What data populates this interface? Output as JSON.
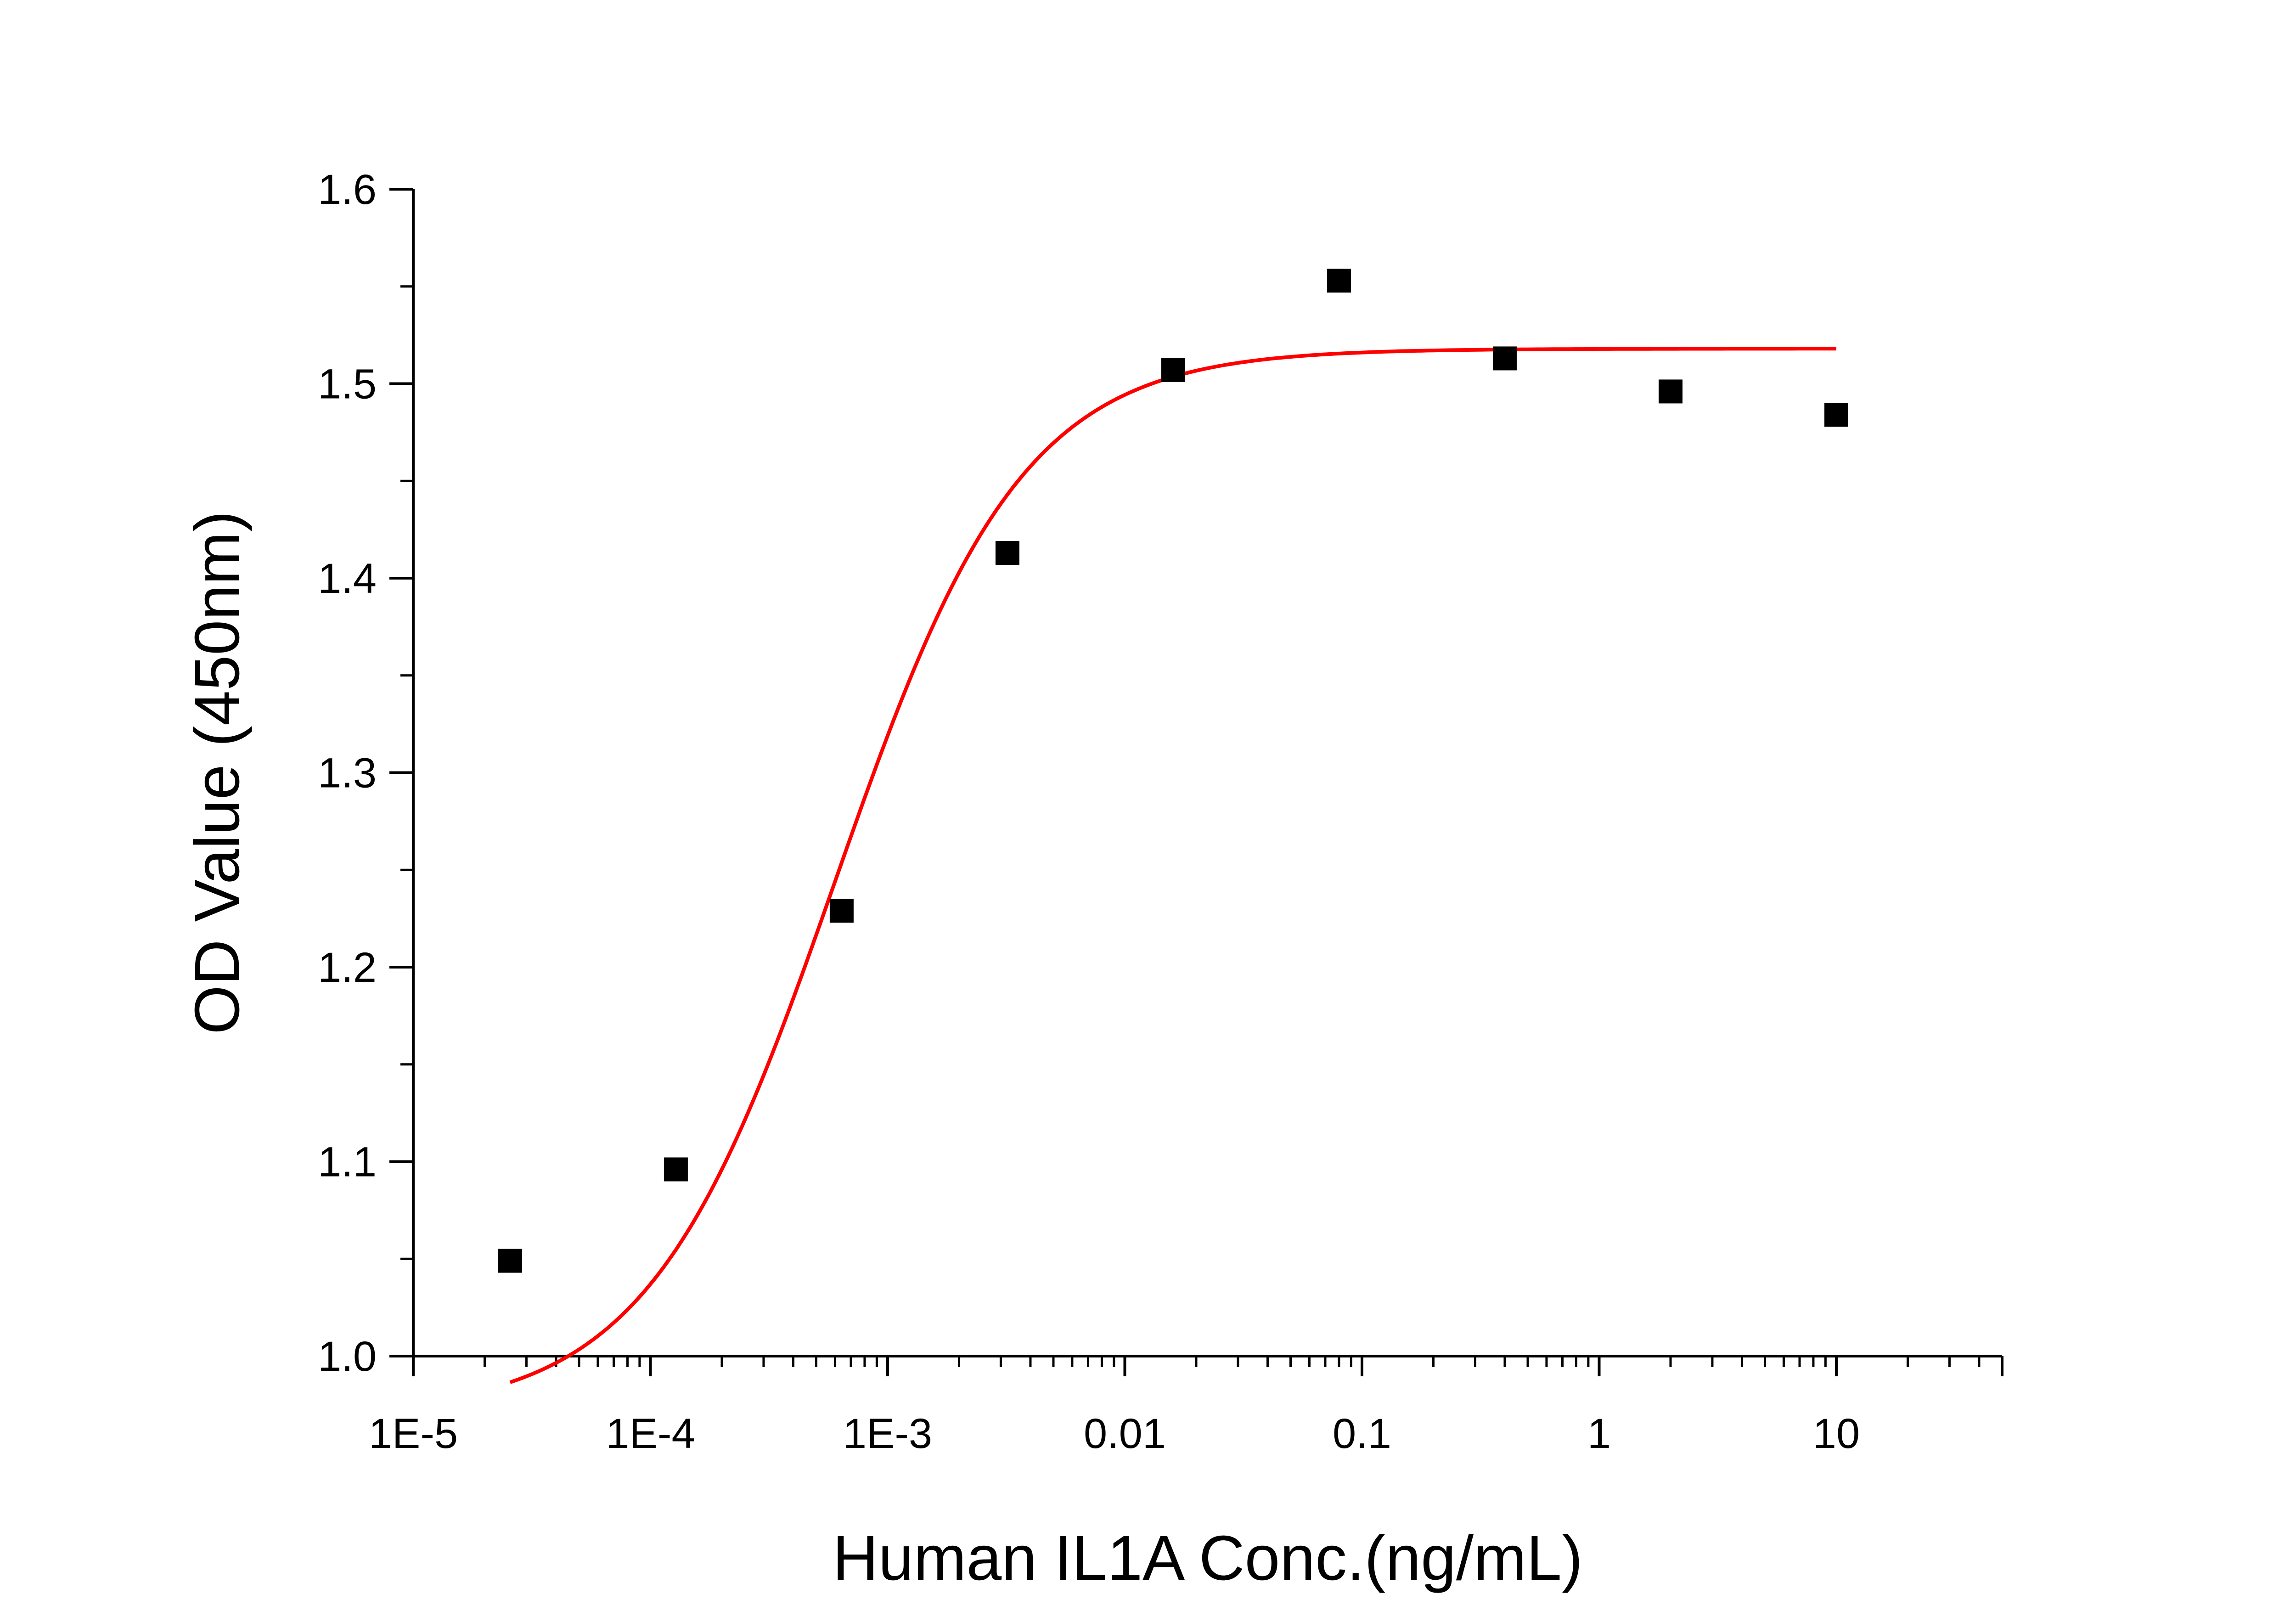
{
  "chart_data": {
    "type": "scatter",
    "xlabel": "Human IL1A Conc.(ng/mL)",
    "ylabel": "OD Value (450nm)",
    "x_scale": "log",
    "xlim": [
      1e-05,
      50
    ],
    "ylim": [
      1.0,
      1.6
    ],
    "x_ticks": [
      {
        "value": 1e-05,
        "label": "1E-5"
      },
      {
        "value": 0.0001,
        "label": "1E-4"
      },
      {
        "value": 0.001,
        "label": "1E-3"
      },
      {
        "value": 0.01,
        "label": "0.01"
      },
      {
        "value": 0.1,
        "label": "0.1"
      },
      {
        "value": 1,
        "label": "1"
      },
      {
        "value": 10,
        "label": "10"
      }
    ],
    "y_ticks": [
      {
        "value": 1.0,
        "label": "1.0"
      },
      {
        "value": 1.1,
        "label": "1.1"
      },
      {
        "value": 1.2,
        "label": "1.2"
      },
      {
        "value": 1.3,
        "label": "1.3"
      },
      {
        "value": 1.4,
        "label": "1.4"
      },
      {
        "value": 1.5,
        "label": "1.5"
      },
      {
        "value": 1.6,
        "label": "1.6"
      }
    ],
    "grid": false,
    "legend": "none",
    "series": [
      {
        "kind": "points",
        "marker": "square",
        "color": "#000000",
        "x": [
          2.56e-05,
          0.000128,
          0.00064,
          0.0032,
          0.016,
          0.08,
          0.4,
          2,
          10
        ],
        "y": [
          1.049,
          1.096,
          1.229,
          1.413,
          1.507,
          1.553,
          1.513,
          1.496,
          1.484
        ]
      },
      {
        "kind": "fit",
        "model": "4PL",
        "color": "#ff0000",
        "x_range": [
          2.56e-05,
          10
        ],
        "bottom": 0.97,
        "top": 1.518,
        "ec50": 0.0006,
        "hill": 1.1
      }
    ]
  }
}
